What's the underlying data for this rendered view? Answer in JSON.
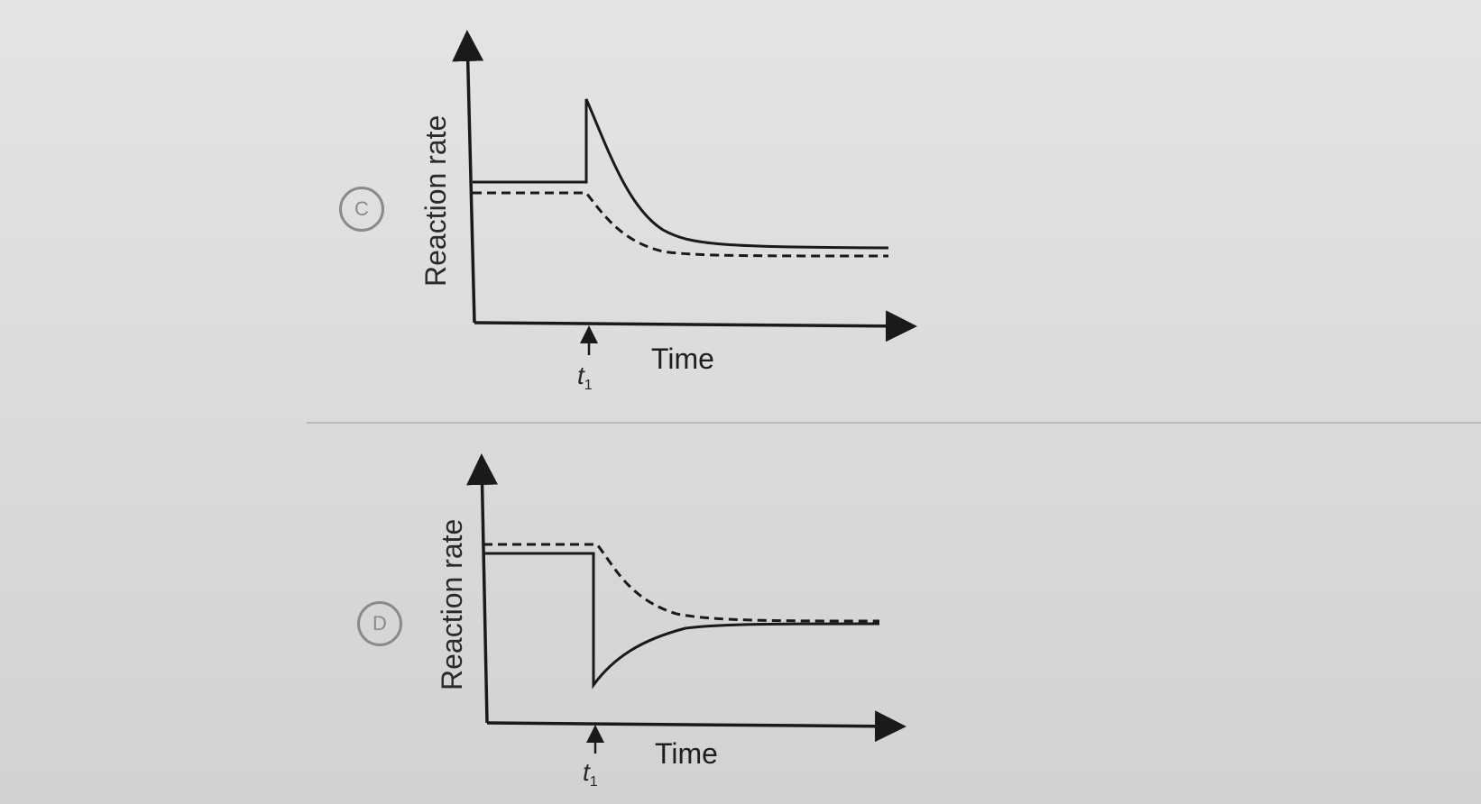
{
  "options": [
    {
      "letter": "C",
      "ylabel": "Reaction rate",
      "xlabel": "Time",
      "marker": "t",
      "marker_sub": "1"
    },
    {
      "letter": "D",
      "ylabel": "Reaction rate",
      "xlabel": "Time",
      "marker": "t",
      "marker_sub": "1"
    }
  ],
  "colors": {
    "line": "#1a1a1a",
    "option_circle": "#8a8a88"
  }
}
